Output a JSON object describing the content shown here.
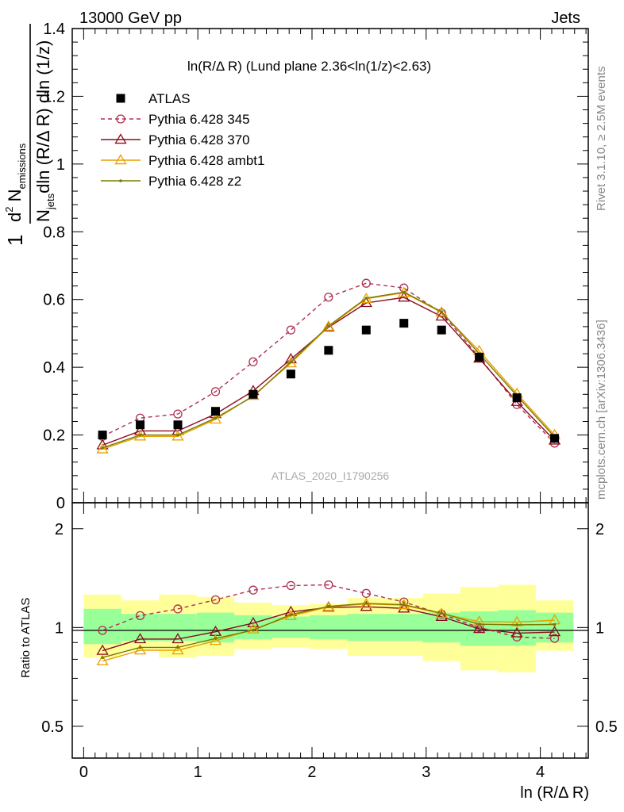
{
  "header": {
    "left": "13000 GeV pp",
    "right": "Jets"
  },
  "side_labels": {
    "rivet": "Rivet 3.1.10, ≥ 2.5M events",
    "mcplots": "mcplots.cern.ch [arXiv:1306.3436]"
  },
  "chart_data": {
    "type": "line",
    "title": "ln(R/Δ R) (Lund plane 2.36<ln(1/z)<2.63)",
    "watermark": "ATLAS_2020_I1790256",
    "xlabel": "ln (R/Δ R)",
    "ylabel_main": {
      "frac_one": "1",
      "num_prefix": "d",
      "num_sup": "2",
      "num_N": " N",
      "num_sub": "emissions",
      "den_N": "N",
      "den_sub": "jets",
      "den_rest": "dln (R/Δ R) dln (1/z)"
    },
    "ylabel_ratio": "Ratio to ATLAS",
    "xlim": [
      -0.1,
      4.42
    ],
    "ylim_main": [
      0,
      1.4
    ],
    "ylim_ratio": [
      0.4,
      2.4
    ],
    "ratio_log_scale": true,
    "x_ticks": [
      "0",
      "1",
      "2",
      "3",
      "4"
    ],
    "y_ticks_main": [
      "0",
      "0.2",
      "0.4",
      "0.6",
      "0.8",
      "1",
      "1.2",
      "1.4"
    ],
    "y_ticks_ratio": [
      "0.5",
      "1",
      "2"
    ],
    "bin_edges": [
      0.0,
      0.33,
      0.66,
      0.99,
      1.32,
      1.65,
      1.98,
      2.31,
      2.64,
      2.97,
      3.3,
      3.63,
      3.96,
      4.29
    ],
    "x": [
      0.165,
      0.495,
      0.825,
      1.155,
      1.485,
      1.815,
      2.145,
      2.475,
      2.805,
      3.135,
      3.465,
      3.795,
      4.125
    ],
    "data": {
      "name": "ATLAS",
      "values": [
        0.2,
        0.23,
        0.23,
        0.27,
        0.32,
        0.38,
        0.45,
        0.51,
        0.53,
        0.51,
        0.43,
        0.31,
        0.19
      ]
    },
    "band_inner": [
      [
        0.89,
        1.14
      ],
      [
        0.91,
        1.1
      ],
      [
        0.91,
        1.1
      ],
      [
        0.9,
        1.11
      ],
      [
        0.92,
        1.09
      ],
      [
        0.93,
        1.08
      ],
      [
        0.92,
        1.09
      ],
      [
        0.91,
        1.1
      ],
      [
        0.91,
        1.1
      ],
      [
        0.9,
        1.11
      ],
      [
        0.88,
        1.12
      ],
      [
        0.88,
        1.13
      ],
      [
        0.9,
        1.11
      ]
    ],
    "band_outer": [
      [
        0.81,
        1.26
      ],
      [
        0.85,
        1.21
      ],
      [
        0.81,
        1.26
      ],
      [
        0.82,
        1.24
      ],
      [
        0.86,
        1.19
      ],
      [
        0.87,
        1.17
      ],
      [
        0.86,
        1.18
      ],
      [
        0.82,
        1.23
      ],
      [
        0.82,
        1.23
      ],
      [
        0.79,
        1.27
      ],
      [
        0.74,
        1.33
      ],
      [
        0.73,
        1.35
      ],
      [
        0.85,
        1.21
      ]
    ],
    "series": [
      {
        "name": "Pythia 6.428 345",
        "color": "#b03050",
        "marker": "circle",
        "dashed": true,
        "values": [
          0.196,
          0.25,
          0.262,
          0.328,
          0.416,
          0.51,
          0.607,
          0.648,
          0.634,
          0.56,
          0.43,
          0.29,
          0.176
        ]
      },
      {
        "name": "Pythia 6.428 370",
        "color": "#8b0a1e",
        "marker": "triangle",
        "dashed": false,
        "values": [
          0.17,
          0.212,
          0.212,
          0.262,
          0.33,
          0.424,
          0.518,
          0.59,
          0.606,
          0.55,
          0.426,
          0.298,
          0.184
        ]
      },
      {
        "name": "Pythia 6.428 ambt1",
        "color": "#e8a000",
        "marker": "triangle",
        "dashed": false,
        "values": [
          0.158,
          0.196,
          0.196,
          0.246,
          0.316,
          0.412,
          0.52,
          0.602,
          0.62,
          0.562,
          0.448,
          0.322,
          0.2
        ]
      },
      {
        "name": "Pythia 6.428 z2",
        "color": "#7a7a00",
        "marker": "dot",
        "dashed": false,
        "values": [
          0.162,
          0.2,
          0.2,
          0.25,
          0.314,
          0.416,
          0.522,
          0.604,
          0.622,
          0.564,
          0.44,
          0.316,
          0.194
        ]
      }
    ]
  }
}
